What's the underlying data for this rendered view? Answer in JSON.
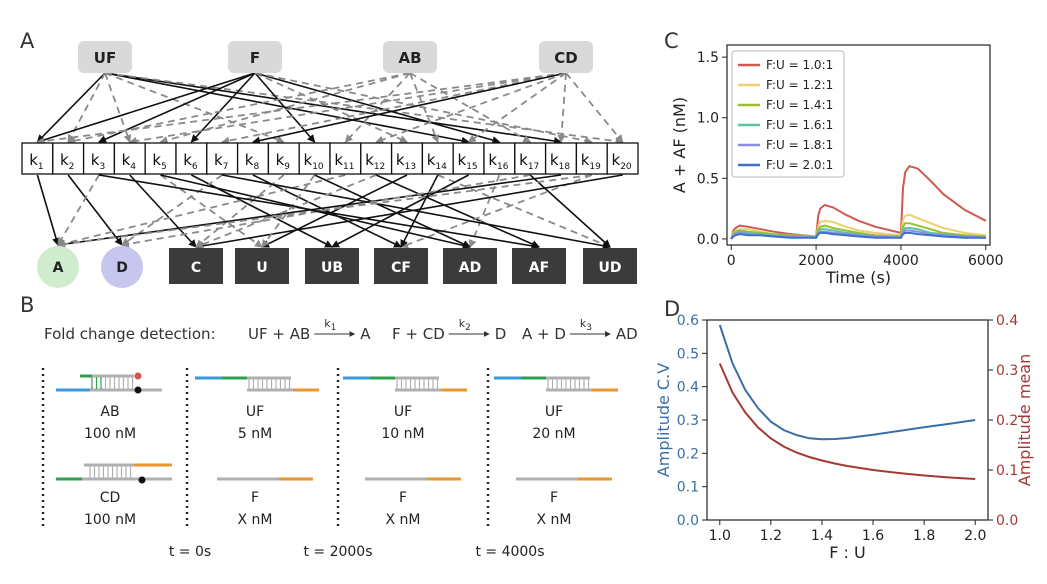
{
  "panels": {
    "a": "A",
    "b": "B",
    "c": "C",
    "d": "D"
  },
  "network": {
    "top_nodes": [
      "UF",
      "F",
      "AB",
      "CD"
    ],
    "k_prefix": "k",
    "k_indices": [
      "1",
      "2",
      "3",
      "4",
      "5",
      "6",
      "7",
      "8",
      "9",
      "10",
      "11",
      "12",
      "13",
      "14",
      "15",
      "16",
      "17",
      "18",
      "19",
      "20"
    ],
    "circle_outputs": [
      "A",
      "D"
    ],
    "circle_colors": [
      "#cfeccf",
      "#c6c6ef"
    ],
    "box_outputs": [
      "C",
      "U",
      "UB",
      "CF",
      "AD",
      "AF",
      "UD"
    ]
  },
  "fold_change": {
    "title": "Fold change detection:",
    "reactions": [
      {
        "left": "UF + AB",
        "k": "k",
        "sub": "1",
        "right": "A"
      },
      {
        "left": "F + CD",
        "k": "k",
        "sub": "2",
        "right": "D"
      },
      {
        "left": "A + D",
        "k": "k",
        "sub": "3",
        "right": "AD"
      }
    ],
    "columns": [
      {
        "top_name": "AB",
        "top_conc": "100 nM",
        "bottom_name": "CD",
        "bottom_conc": "100 nM"
      },
      {
        "top_name": "UF",
        "top_conc": "5 nM",
        "bottom_name": "F",
        "bottom_conc": "X nM"
      },
      {
        "top_name": "UF",
        "top_conc": "10 nM",
        "bottom_name": "F",
        "bottom_conc": "X nM"
      },
      {
        "top_name": "UF",
        "top_conc": "20 nM",
        "bottom_name": "F",
        "bottom_conc": "X nM"
      }
    ],
    "times": [
      "t = 0s",
      "t = 2000s",
      "t = 4000s"
    ],
    "strand_colors": {
      "blue": "#3a9ad9",
      "green": "#2e9e4f",
      "gray": "#b0b0b0",
      "orange": "#e8962e",
      "red": "#d9534f"
    }
  },
  "chart_data": [
    {
      "type": "line",
      "xlabel": "Time (s)",
      "ylabel": "A + AF (nM)",
      "xlim": [
        -100,
        6100
      ],
      "ylim": [
        -0.05,
        1.6
      ],
      "xticks": [
        "0",
        "2000",
        "4000",
        "6000"
      ],
      "yticks": [
        "0.0",
        "0.5",
        "1.0",
        "1.5"
      ],
      "legend_position": "upper-left",
      "x": [
        0,
        50,
        100,
        200,
        400,
        700,
        1000,
        1400,
        1999,
        2000,
        2050,
        2100,
        2200,
        2400,
        2700,
        3000,
        3400,
        3999,
        4000,
        4050,
        4100,
        4200,
        4400,
        4700,
        5000,
        5500,
        6000
      ],
      "series": [
        {
          "name": "F:U = 1.0:1",
          "color": "#d05a52",
          "values": [
            0.0,
            0.07,
            0.09,
            0.11,
            0.1,
            0.08,
            0.06,
            0.04,
            0.02,
            0.02,
            0.19,
            0.25,
            0.28,
            0.26,
            0.2,
            0.15,
            0.1,
            0.05,
            0.05,
            0.42,
            0.55,
            0.6,
            0.58,
            0.48,
            0.37,
            0.24,
            0.15
          ]
        },
        {
          "name": "F:U = 1.2:1",
          "color": "#f0cf70",
          "values": [
            0.0,
            0.05,
            0.07,
            0.08,
            0.08,
            0.06,
            0.04,
            0.03,
            0.02,
            0.02,
            0.11,
            0.14,
            0.15,
            0.14,
            0.1,
            0.07,
            0.05,
            0.03,
            0.03,
            0.16,
            0.19,
            0.2,
            0.17,
            0.13,
            0.09,
            0.05,
            0.03
          ]
        },
        {
          "name": "F:U = 1.4:1",
          "color": "#9bbf2e",
          "values": [
            0.0,
            0.04,
            0.06,
            0.07,
            0.06,
            0.05,
            0.04,
            0.03,
            0.02,
            0.02,
            0.08,
            0.1,
            0.11,
            0.09,
            0.07,
            0.05,
            0.03,
            0.02,
            0.02,
            0.1,
            0.13,
            0.13,
            0.11,
            0.08,
            0.05,
            0.03,
            0.02
          ]
        },
        {
          "name": "F:U = 1.6:1",
          "color": "#5cc49a",
          "values": [
            0.0,
            0.03,
            0.05,
            0.06,
            0.05,
            0.04,
            0.03,
            0.02,
            0.01,
            0.01,
            0.06,
            0.08,
            0.08,
            0.07,
            0.05,
            0.04,
            0.02,
            0.01,
            0.01,
            0.07,
            0.09,
            0.09,
            0.08,
            0.05,
            0.04,
            0.02,
            0.01
          ]
        },
        {
          "name": "F:U = 1.8:1",
          "color": "#8a8fe6",
          "values": [
            0.0,
            0.03,
            0.04,
            0.05,
            0.04,
            0.03,
            0.02,
            0.02,
            0.01,
            0.01,
            0.05,
            0.06,
            0.06,
            0.05,
            0.04,
            0.03,
            0.02,
            0.01,
            0.01,
            0.05,
            0.07,
            0.07,
            0.06,
            0.04,
            0.03,
            0.02,
            0.01
          ]
        },
        {
          "name": "F:U = 2.0:1",
          "color": "#3f6fd0",
          "values": [
            0.0,
            0.02,
            0.03,
            0.04,
            0.03,
            0.03,
            0.02,
            0.01,
            0.01,
            0.01,
            0.04,
            0.05,
            0.05,
            0.04,
            0.03,
            0.02,
            0.01,
            0.01,
            0.01,
            0.04,
            0.05,
            0.05,
            0.04,
            0.03,
            0.02,
            0.01,
            0.01
          ]
        }
      ]
    },
    {
      "type": "line",
      "xlabel": "F : U",
      "ylabel": "Amplitude C.V",
      "ylabel_right": "Amplitude mean",
      "xlim": [
        0.95,
        2.05
      ],
      "ylim": [
        0.0,
        0.6
      ],
      "ylim_right": [
        0.0,
        0.4
      ],
      "xticks": [
        "1.0",
        "1.2",
        "1.4",
        "1.6",
        "1.8",
        "2.0"
      ],
      "yticks": [
        "0.0",
        "0.1",
        "0.2",
        "0.3",
        "0.4",
        "0.5",
        "0.6"
      ],
      "yticks_right": [
        "0.0",
        "0.1",
        "0.2",
        "0.3",
        "0.4"
      ],
      "x": [
        1.0,
        1.05,
        1.1,
        1.15,
        1.2,
        1.25,
        1.3,
        1.35,
        1.4,
        1.45,
        1.5,
        1.6,
        1.7,
        1.8,
        1.9,
        2.0
      ],
      "series": [
        {
          "axis": "left",
          "color": "#3a6ea5",
          "values": [
            0.585,
            0.47,
            0.39,
            0.335,
            0.295,
            0.27,
            0.255,
            0.245,
            0.242,
            0.243,
            0.246,
            0.256,
            0.267,
            0.278,
            0.289,
            0.3
          ]
        },
        {
          "axis": "right",
          "color": "#a33a35",
          "values": [
            0.313,
            0.255,
            0.215,
            0.185,
            0.163,
            0.147,
            0.135,
            0.126,
            0.119,
            0.113,
            0.108,
            0.1,
            0.094,
            0.089,
            0.085,
            0.082
          ]
        }
      ]
    }
  ]
}
